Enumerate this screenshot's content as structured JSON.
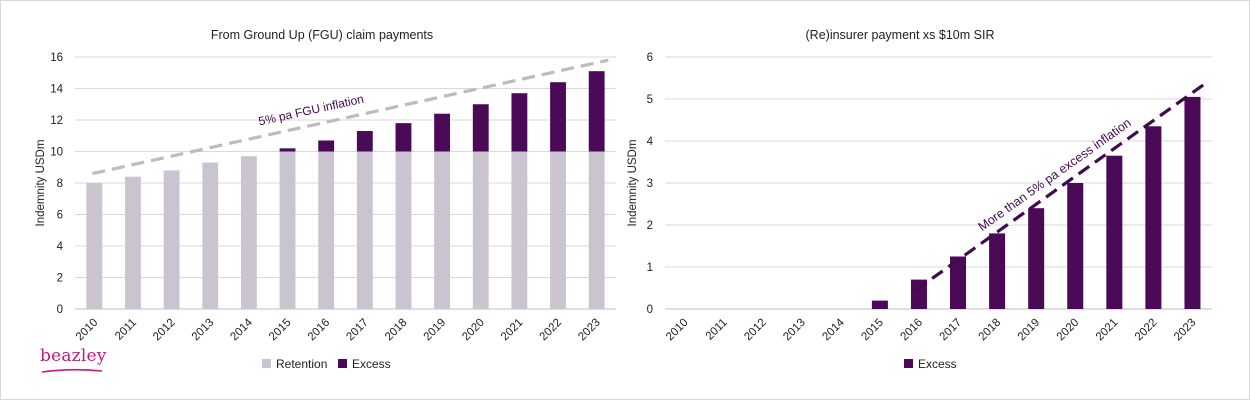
{
  "brand": {
    "logo_text": "beazley",
    "logo_color": "#c8197a"
  },
  "colors": {
    "retention": "#c9c4cf",
    "excess": "#4a0a57",
    "grid": "#d9d9d9",
    "fgu_trend": "#bdbbc2",
    "excess_trend": "#3f0a4c"
  },
  "chart_data": [
    {
      "type": "bar",
      "stacked": true,
      "title": "From Ground Up (FGU) claim payments",
      "ylabel": "Indemnity USDm",
      "xlabel": "",
      "ylim": [
        0,
        16
      ],
      "yticks": [
        0,
        2,
        4,
        6,
        8,
        10,
        12,
        14,
        16
      ],
      "grid": true,
      "legend_position": "bottom",
      "categories": [
        "2010",
        "2011",
        "2012",
        "2013",
        "2014",
        "2015",
        "2016",
        "2017",
        "2018",
        "2019",
        "2020",
        "2021",
        "2022",
        "2023"
      ],
      "series": [
        {
          "name": "Retention",
          "values": [
            8.0,
            8.4,
            8.8,
            9.3,
            9.7,
            10.0,
            10.0,
            10.0,
            10.0,
            10.0,
            10.0,
            10.0,
            10.0,
            10.0
          ]
        },
        {
          "name": "Excess",
          "values": [
            0,
            0,
            0,
            0,
            0,
            0.2,
            0.7,
            1.3,
            1.8,
            2.4,
            3.0,
            3.7,
            4.4,
            5.1
          ]
        }
      ],
      "trendline": {
        "label": "5% pa FGU inflation",
        "start": 8.6,
        "end": 15.8
      }
    },
    {
      "type": "bar",
      "title": "(Re)insurer payment xs $10m SIR",
      "ylabel": "Indemnity USDm",
      "xlabel": "",
      "ylim": [
        0,
        6
      ],
      "yticks": [
        0,
        1,
        2,
        3,
        4,
        5,
        6
      ],
      "grid": true,
      "legend_position": "bottom",
      "categories": [
        "2010",
        "2011",
        "2012",
        "2013",
        "2014",
        "2015",
        "2016",
        "2017",
        "2018",
        "2019",
        "2020",
        "2021",
        "2022",
        "2023"
      ],
      "series": [
        {
          "name": "Excess",
          "values": [
            0,
            0,
            0,
            0,
            0,
            0.2,
            0.7,
            1.25,
            1.8,
            2.4,
            3.0,
            3.65,
            4.35,
            5.05
          ]
        }
      ],
      "trendline": {
        "label": "More than 5% pa excess inflation",
        "start_category": "2016",
        "start": 0.45,
        "end": 5.35
      }
    }
  ]
}
